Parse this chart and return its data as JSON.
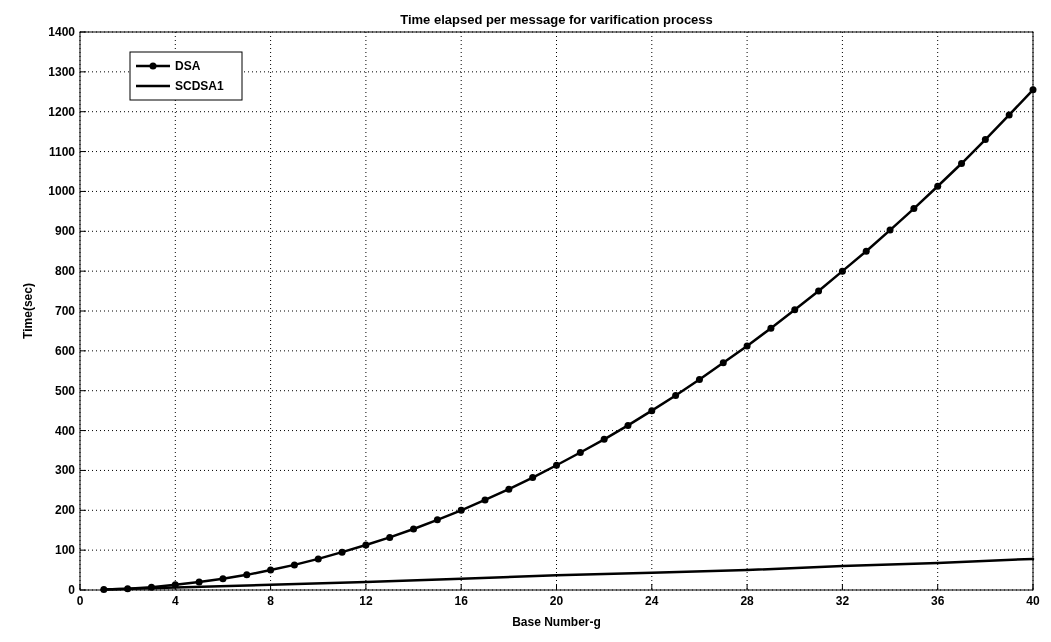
{
  "chart_data": {
    "type": "line",
    "title": "Time elapsed per message for varification process",
    "xlabel": "Base Number-g",
    "ylabel": "Time(sec)",
    "xlim": [
      0,
      40
    ],
    "xticks": [
      0,
      4,
      8,
      12,
      16,
      20,
      24,
      28,
      32,
      36,
      40
    ],
    "ylim": [
      0,
      1400
    ],
    "yticks": [
      0,
      100,
      200,
      300,
      400,
      500,
      600,
      700,
      800,
      900,
      1000,
      1100,
      1200,
      1300,
      1400
    ],
    "grid": true,
    "legend": "top left",
    "series": [
      {
        "name": "DSA",
        "color": "#000000",
        "marker": "circle",
        "x": [
          1,
          2,
          3,
          4,
          5,
          6,
          7,
          8,
          9,
          10,
          11,
          12,
          13,
          14,
          15,
          16,
          17,
          18,
          19,
          20,
          21,
          22,
          23,
          24,
          25,
          26,
          27,
          28,
          29,
          30,
          31,
          32,
          33,
          34,
          35,
          36,
          37,
          38,
          39,
          40
        ],
        "values": [
          1,
          3,
          7,
          13,
          20,
          28,
          38,
          50,
          63,
          78,
          95,
          113,
          132,
          153,
          176,
          200,
          226,
          253,
          282,
          313,
          345,
          378,
          413,
          450,
          488,
          528,
          570,
          612,
          657,
          703,
          750,
          800,
          850,
          903,
          957,
          1013,
          1070,
          1130,
          1192,
          1255
        ]
      },
      {
        "name": "SCDSA1",
        "color": "#000000",
        "marker": "none",
        "x": [
          1,
          4,
          8,
          12,
          16,
          20,
          24,
          28,
          32,
          36,
          40
        ],
        "values": [
          1,
          6,
          13,
          20,
          28,
          37,
          43,
          50,
          60,
          68,
          78
        ]
      }
    ]
  }
}
